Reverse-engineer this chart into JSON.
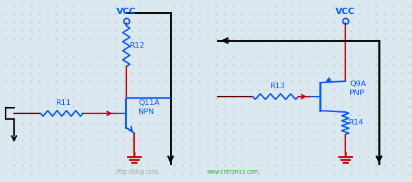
{
  "bg_color": "#dce8f0",
  "dot_color": "#b0c4d4",
  "blue": "#0055ff",
  "red": "#cc0000",
  "black": "#000000",
  "dark_red": "#660000",
  "green": "#00aa00",
  "vcc_text": "VCC",
  "vcc_text2": "VCC",
  "q11_label": "Q11A",
  "npn_label": "NPN",
  "r11_label": "R11",
  "r12_label": "R12",
  "q9_label": "Q9A",
  "pnp_label": "PNP",
  "r13_label": "R13",
  "r14_label": "R14",
  "watermark1": "http://blog.csdn.",
  "watermark2": "www.cntronics.com",
  "figw": 5.87,
  "figh": 2.6,
  "dpi": 100
}
